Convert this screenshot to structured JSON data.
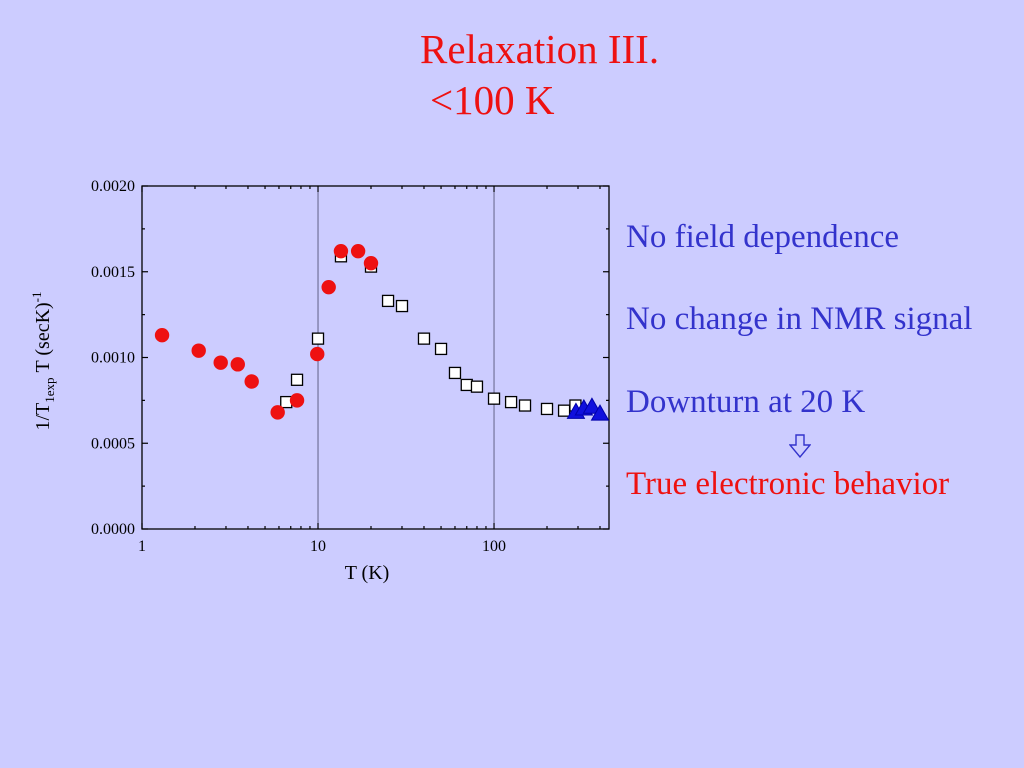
{
  "slide": {
    "title_lines": [
      "Relaxation III.",
      "<100 K"
    ],
    "title_color": "#EE1111",
    "background": "#CCCCFF"
  },
  "notes": [
    {
      "text": "No field dependence",
      "color": "#3333CC"
    },
    {
      "text": "No change in NMR signal",
      "color": "#3333CC"
    },
    {
      "text": "Downturn at 20 K",
      "color": "#3333CC"
    },
    {
      "text": "True electronic behavior",
      "color": "#EE1111"
    }
  ],
  "arrow": {
    "icon": "down-arrow-icon",
    "color": "#3333CC"
  },
  "chart_data": {
    "type": "scatter",
    "xlabel": "T (K)",
    "ylabel": {
      "main": "1/T",
      "sub": "1exp",
      "rest": "T (secK)",
      "sup": "-1"
    },
    "xscale": "log",
    "xlim": [
      1,
      450
    ],
    "ylim": [
      0,
      0.002
    ],
    "xticks": {
      "values": [
        1,
        10,
        100
      ],
      "labels": [
        "1",
        "10",
        "100"
      ]
    },
    "yticks": {
      "values": [
        0,
        0.0005,
        0.001,
        0.0015,
        0.002
      ],
      "labels": [
        "0.0000",
        "0.0005",
        "0.0010",
        "0.0015",
        "0.0020"
      ]
    },
    "grid_x": [
      10,
      100
    ],
    "legend": "none",
    "series": [
      {
        "marker": "square",
        "stroke": "#000000",
        "fill": "#FFFFFF",
        "x": [
          6.6,
          7.6,
          10,
          13.5,
          20,
          25,
          30,
          40,
          50,
          60,
          70,
          80,
          100,
          125,
          150,
          200,
          250,
          290
        ],
        "y": [
          0.00074,
          0.00087,
          0.00111,
          0.00159,
          0.00153,
          0.00133,
          0.0013,
          0.00111,
          0.00105,
          0.00091,
          0.00084,
          0.00083,
          0.00076,
          0.00074,
          0.00072,
          0.0007,
          0.00069,
          0.00072
        ]
      },
      {
        "marker": "circle",
        "stroke": "#EE1111",
        "fill": "#EE1111",
        "x": [
          1.3,
          2.1,
          2.8,
          3.5,
          4.2,
          5.9,
          7.6,
          9.9,
          11.5,
          13.5,
          16.9,
          20
        ],
        "y": [
          0.00113,
          0.00104,
          0.00097,
          0.00096,
          0.00086,
          0.00068,
          0.00075,
          0.00102,
          0.00141,
          0.00162,
          0.00162,
          0.00155
        ]
      },
      {
        "marker": "triangle",
        "stroke": "#0000AA",
        "fill": "#1010DD",
        "x": [
          292,
          324,
          360,
          400
        ],
        "y": [
          0.00068,
          0.0007,
          0.00071,
          0.00067
        ]
      }
    ]
  }
}
